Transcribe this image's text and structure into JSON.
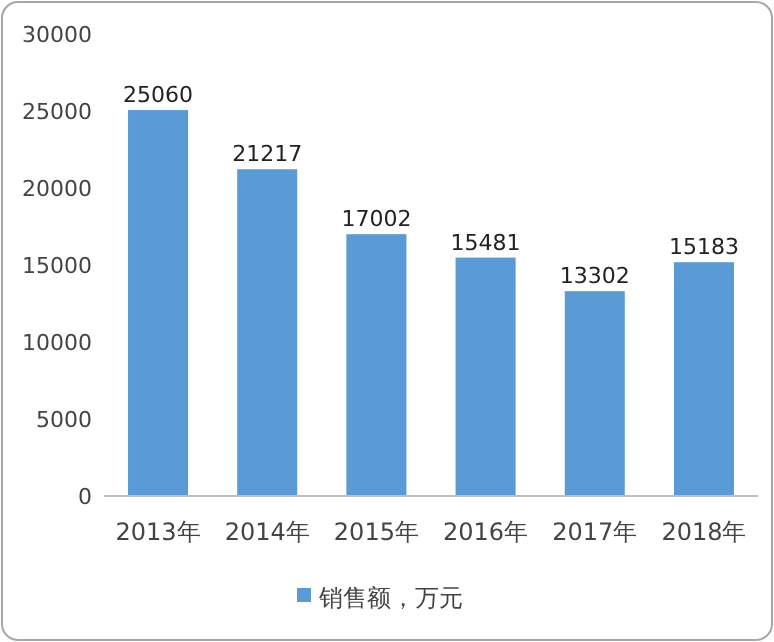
{
  "chart_data": {
    "type": "bar",
    "categories": [
      "2013年",
      "2014年",
      "2015年",
      "2016年",
      "2017年",
      "2018年"
    ],
    "series": [
      {
        "name": "销售额，万元",
        "color": "#5b9bd5",
        "values": [
          25060,
          21217,
          17002,
          15481,
          13302,
          15183
        ]
      }
    ],
    "ylim": [
      0,
      30000
    ],
    "yticks": [
      0,
      5000,
      10000,
      15000,
      20000,
      25000,
      30000
    ],
    "grid": false,
    "legend": "bottom",
    "data_labels": true
  }
}
